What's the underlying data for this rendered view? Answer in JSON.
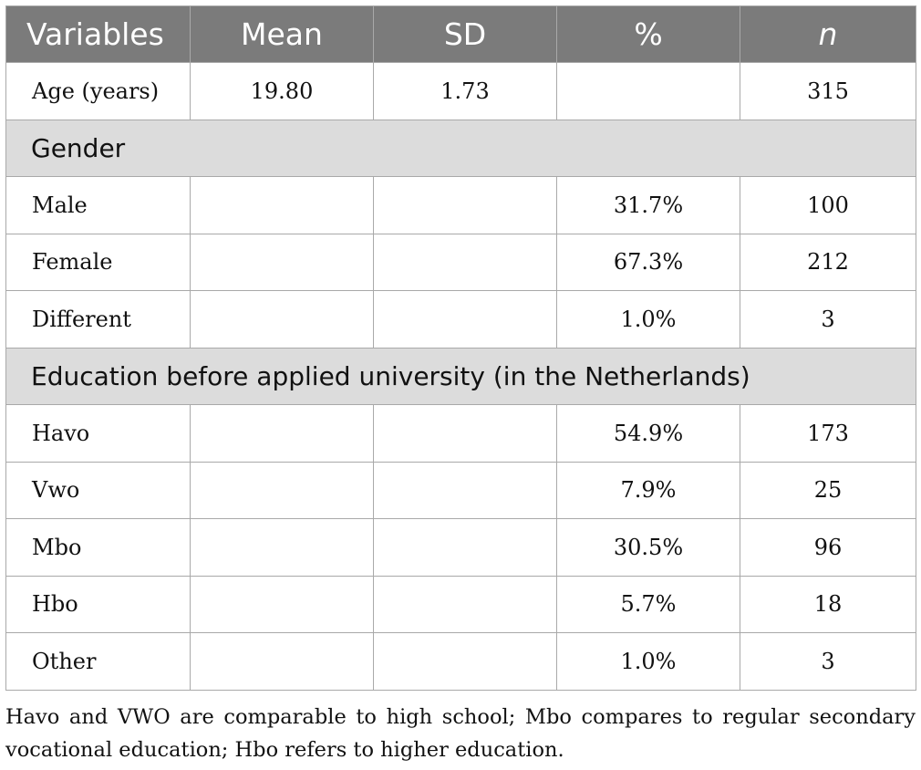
{
  "headers": [
    "Variables",
    "Mean",
    "SD",
    "%",
    "n"
  ],
  "age_row": {
    "label": "Age (years)",
    "mean": "19.80",
    "sd": "1.73",
    "percent": "",
    "n": "315"
  },
  "gender": {
    "title": "Gender",
    "rows": [
      {
        "label": "Male",
        "percent": "31.7%",
        "n": "100"
      },
      {
        "label": "Female",
        "percent": "67.3%",
        "n": "212"
      },
      {
        "label": "Different",
        "percent": "1.0%",
        "n": "3"
      }
    ]
  },
  "education": {
    "title": "Education before applied university (in the Netherlands)",
    "rows": [
      {
        "label": "Havo",
        "percent": "54.9%",
        "n": "173"
      },
      {
        "label": "Vwo",
        "percent": "7.9%",
        "n": "25"
      },
      {
        "label": "Mbo",
        "percent": "30.5%",
        "n": "96"
      },
      {
        "label": "Hbo",
        "percent": "5.7%",
        "n": "18"
      },
      {
        "label": "Other",
        "percent": "1.0%",
        "n": "3"
      }
    ]
  },
  "footnote": "Havo and VWO are comparable to high school; Mbo compares to regular secondary vocational education; Hbo refers to higher education."
}
